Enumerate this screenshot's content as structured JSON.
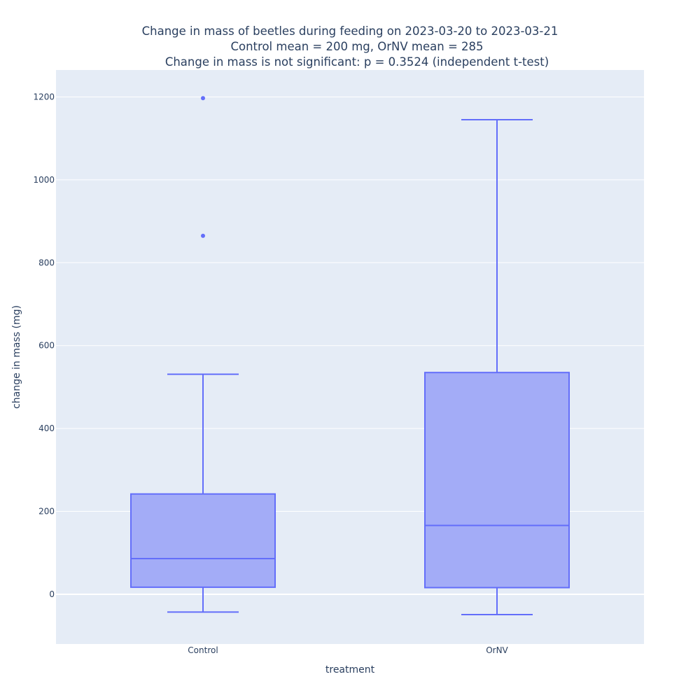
{
  "chart_data": {
    "type": "box",
    "title_lines": [
      "Change in mass of beetles during feeding on 2023-03-20 to 2023-03-21",
      "Control mean = 200 mg, OrNV mean = 285",
      "Change in mass is not significant: p = 0.3524 (independent t-test)"
    ],
    "xlabel": "treatment",
    "ylabel": "change in mass (mg)",
    "ylim": [
      -120,
      1265
    ],
    "yticks": [
      0,
      200,
      400,
      600,
      800,
      1000,
      1200
    ],
    "grid": true,
    "legend": "none",
    "colors": {
      "plot_bg": "#e5ecf6",
      "grid": "#ffffff",
      "box_line": "#636efa",
      "box_fill": "#a3acf7",
      "text": "#2a3f5f"
    },
    "categories": [
      "Control",
      "OrNV"
    ],
    "boxes": [
      {
        "category": "Control",
        "lower_whisker": -43,
        "q1": 17,
        "median": 86,
        "q3": 242,
        "upper_whisker": 531,
        "outliers": [
          865,
          1197
        ]
      },
      {
        "category": "OrNV",
        "lower_whisker": -49,
        "q1": 16,
        "median": 166,
        "q3": 535,
        "upper_whisker": 1145,
        "outliers": []
      }
    ]
  }
}
